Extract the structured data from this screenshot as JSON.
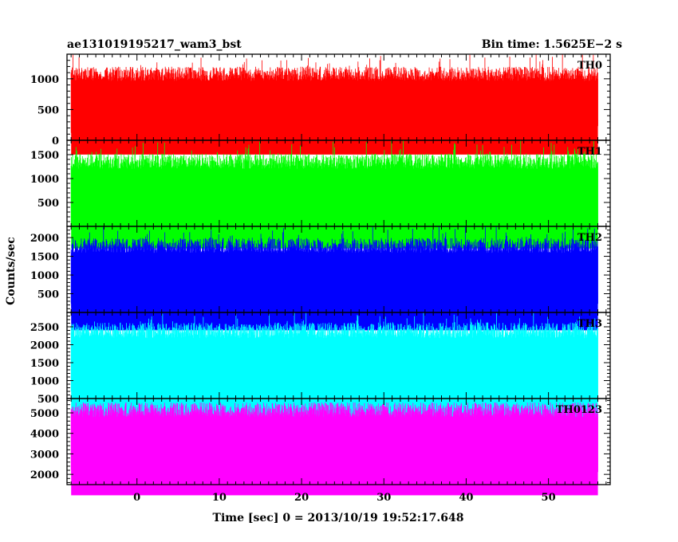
{
  "chart_data": {
    "type": "line",
    "title_left": "ae131019195217_wam3_bst",
    "title_right": "Bin time: 1.5625E−2 s",
    "xlabel": "Time [sec] 0 = 2013/10/19 19:52:17.648",
    "ylabel": "Counts/sec",
    "xlim": [
      -8.5,
      57.5
    ],
    "x_ticks": [
      0,
      10,
      20,
      30,
      40,
      50
    ],
    "grid": false,
    "data_x_range": [
      -8,
      56
    ],
    "panels": [
      {
        "name": "TH0",
        "color": "#ff0000",
        "ylim": [
          0,
          1400
        ],
        "y_ticks": [
          0,
          500,
          1000
        ],
        "band": {
          "low": 230,
          "high": 1000,
          "min": 100,
          "max": 1400
        }
      },
      {
        "name": "TH1",
        "color": "#00ff00",
        "ylim": [
          0,
          1800
        ],
        "y_ticks": [
          500,
          1000,
          1500
        ],
        "band": {
          "low": 180,
          "high": 1250,
          "min": 60,
          "max": 1800
        }
      },
      {
        "name": "TH2",
        "color": "#0000ff",
        "ylim": [
          0,
          2300
        ],
        "y_ticks": [
          500,
          1000,
          1500,
          2000
        ],
        "band": {
          "low": 320,
          "high": 1650,
          "min": 50,
          "max": 2300
        }
      },
      {
        "name": "TH3",
        "color": "#00ffff",
        "ylim": [
          500,
          2900
        ],
        "y_ticks": [
          500,
          1000,
          1500,
          2000,
          2500
        ],
        "band": {
          "low": 800,
          "high": 2250,
          "min": 500,
          "max": 2900
        }
      },
      {
        "name": "TH0123",
        "color": "#ff00ff",
        "ylim": [
          1500,
          5700
        ],
        "y_ticks": [
          2000,
          3000,
          4000,
          5000
        ],
        "band": {
          "low": 2450,
          "high": 4900,
          "min": 1700,
          "max": 5500
        }
      }
    ]
  }
}
